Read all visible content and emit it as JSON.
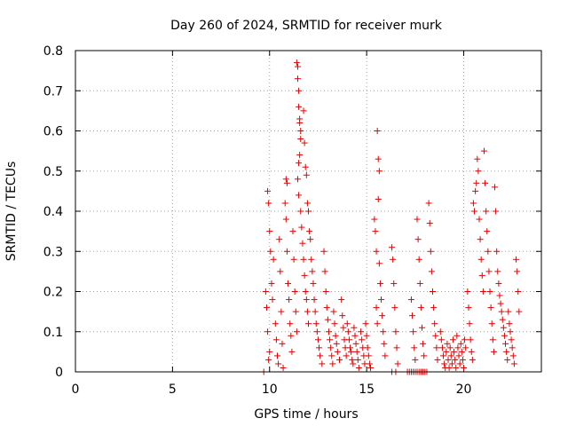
{
  "chart_data": {
    "type": "scatter",
    "title": "Day 260 of 2024, SRMTID for receiver murk",
    "xlabel": "GPS time / hours",
    "ylabel": "SRMTID / TECUs",
    "xlim": [
      0,
      24
    ],
    "ylim": [
      0,
      0.8
    ],
    "xticks": [
      0,
      5,
      10,
      15,
      20
    ],
    "xtick_labels": [
      "0",
      "5",
      "10",
      "15",
      "20"
    ],
    "yticks": [
      0,
      0.1,
      0.2,
      0.3,
      0.4,
      0.5,
      0.6,
      0.7,
      0.8
    ],
    "ytick_labels": [
      "0",
      "0.1",
      "0.2",
      "0.3",
      "0.4",
      "0.5",
      "0.6",
      "0.7",
      "0.8"
    ],
    "grid": true,
    "marker": "+",
    "color": "#e60000",
    "series": [
      {
        "name": "SRMTID",
        "points": [
          [
            9.7,
            0.0
          ],
          [
            9.9,
            0.45
          ],
          [
            9.95,
            0.42
          ],
          [
            10.0,
            0.35
          ],
          [
            10.05,
            0.3
          ],
          [
            10.1,
            0.22
          ],
          [
            10.15,
            0.18
          ],
          [
            9.8,
            0.2
          ],
          [
            9.85,
            0.16
          ],
          [
            9.9,
            0.1
          ],
          [
            10.0,
            0.05
          ],
          [
            9.95,
            0.03
          ],
          [
            10.2,
            0.28
          ],
          [
            10.3,
            0.12
          ],
          [
            10.35,
            0.08
          ],
          [
            10.4,
            0.04
          ],
          [
            10.45,
            0.02
          ],
          [
            10.5,
            0.33
          ],
          [
            10.55,
            0.25
          ],
          [
            10.6,
            0.15
          ],
          [
            10.65,
            0.07
          ],
          [
            10.7,
            0.01
          ],
          [
            10.8,
            0.42
          ],
          [
            10.85,
            0.38
          ],
          [
            10.9,
            0.3
          ],
          [
            10.95,
            0.22
          ],
          [
            11.0,
            0.18
          ],
          [
            11.05,
            0.12
          ],
          [
            11.1,
            0.09
          ],
          [
            11.15,
            0.05
          ],
          [
            10.85,
            0.48
          ],
          [
            10.9,
            0.47
          ],
          [
            11.2,
            0.35
          ],
          [
            11.25,
            0.28
          ],
          [
            11.3,
            0.2
          ],
          [
            11.35,
            0.15
          ],
          [
            11.4,
            0.1
          ],
          [
            11.4,
            0.77
          ],
          [
            11.45,
            0.76
          ],
          [
            11.45,
            0.73
          ],
          [
            11.5,
            0.7
          ],
          [
            11.5,
            0.66
          ],
          [
            11.55,
            0.63
          ],
          [
            11.55,
            0.62
          ],
          [
            11.6,
            0.6
          ],
          [
            11.6,
            0.58
          ],
          [
            11.55,
            0.54
          ],
          [
            11.5,
            0.52
          ],
          [
            11.45,
            0.48
          ],
          [
            11.5,
            0.44
          ],
          [
            11.6,
            0.4
          ],
          [
            11.65,
            0.36
          ],
          [
            11.7,
            0.32
          ],
          [
            11.75,
            0.28
          ],
          [
            11.8,
            0.24
          ],
          [
            11.85,
            0.2
          ],
          [
            11.9,
            0.18
          ],
          [
            11.95,
            0.15
          ],
          [
            12.0,
            0.12
          ],
          [
            11.75,
            0.65
          ],
          [
            11.8,
            0.57
          ],
          [
            11.85,
            0.51
          ],
          [
            11.9,
            0.49
          ],
          [
            11.95,
            0.42
          ],
          [
            12.0,
            0.4
          ],
          [
            12.05,
            0.35
          ],
          [
            12.1,
            0.33
          ],
          [
            12.15,
            0.28
          ],
          [
            12.2,
            0.25
          ],
          [
            12.25,
            0.22
          ],
          [
            12.3,
            0.18
          ],
          [
            12.35,
            0.15
          ],
          [
            12.4,
            0.12
          ],
          [
            12.45,
            0.1
          ],
          [
            12.5,
            0.08
          ],
          [
            12.55,
            0.06
          ],
          [
            12.6,
            0.04
          ],
          [
            12.7,
            0.02
          ],
          [
            12.8,
            0.3
          ],
          [
            12.85,
            0.25
          ],
          [
            12.9,
            0.2
          ],
          [
            12.95,
            0.16
          ],
          [
            13.0,
            0.13
          ],
          [
            13.05,
            0.1
          ],
          [
            13.1,
            0.08
          ],
          [
            13.15,
            0.06
          ],
          [
            13.2,
            0.04
          ],
          [
            13.25,
            0.02
          ],
          [
            13.3,
            0.15
          ],
          [
            13.35,
            0.12
          ],
          [
            13.4,
            0.09
          ],
          [
            13.45,
            0.07
          ],
          [
            13.5,
            0.05
          ],
          [
            13.6,
            0.03
          ],
          [
            13.7,
            0.18
          ],
          [
            13.75,
            0.14
          ],
          [
            13.8,
            0.11
          ],
          [
            13.85,
            0.08
          ],
          [
            13.9,
            0.06
          ],
          [
            13.95,
            0.04
          ],
          [
            14.0,
            0.12
          ],
          [
            14.05,
            0.1
          ],
          [
            14.1,
            0.08
          ],
          [
            14.15,
            0.06
          ],
          [
            14.2,
            0.05
          ],
          [
            14.25,
            0.03
          ],
          [
            14.3,
            0.02
          ],
          [
            14.35,
            0.11
          ],
          [
            14.4,
            0.09
          ],
          [
            14.45,
            0.07
          ],
          [
            14.5,
            0.05
          ],
          [
            14.55,
            0.03
          ],
          [
            14.6,
            0.01
          ],
          [
            14.7,
            0.1
          ],
          [
            14.75,
            0.08
          ],
          [
            14.8,
            0.06
          ],
          [
            14.85,
            0.04
          ],
          [
            14.9,
            0.02
          ],
          [
            14.95,
            0.12
          ],
          [
            15.0,
            0.09
          ],
          [
            15.05,
            0.06
          ],
          [
            15.1,
            0.04
          ],
          [
            15.15,
            0.02
          ],
          [
            15.2,
            0.01
          ],
          [
            15.4,
            0.38
          ],
          [
            15.45,
            0.35
          ],
          [
            15.5,
            0.3
          ],
          [
            15.55,
            0.6
          ],
          [
            15.6,
            0.53
          ],
          [
            15.65,
            0.5
          ],
          [
            15.6,
            0.43
          ],
          [
            15.65,
            0.27
          ],
          [
            15.7,
            0.22
          ],
          [
            15.75,
            0.18
          ],
          [
            15.8,
            0.14
          ],
          [
            15.85,
            0.1
          ],
          [
            15.9,
            0.07
          ],
          [
            15.95,
            0.04
          ],
          [
            15.5,
            0.16
          ],
          [
            15.55,
            0.12
          ],
          [
            16.3,
            0.31
          ],
          [
            16.35,
            0.28
          ],
          [
            16.4,
            0.22
          ],
          [
            16.45,
            0.16
          ],
          [
            16.5,
            0.1
          ],
          [
            16.55,
            0.06
          ],
          [
            16.6,
            0.02
          ],
          [
            16.3,
            0.0
          ],
          [
            16.5,
            0.0
          ],
          [
            17.1,
            0.0
          ],
          [
            17.2,
            0.0
          ],
          [
            17.3,
            0.0
          ],
          [
            17.4,
            0.0
          ],
          [
            17.5,
            0.0
          ],
          [
            17.6,
            0.0
          ],
          [
            17.7,
            0.0
          ],
          [
            17.8,
            0.0
          ],
          [
            17.9,
            0.0
          ],
          [
            18.0,
            0.0
          ],
          [
            18.1,
            0.0
          ],
          [
            17.3,
            0.18
          ],
          [
            17.35,
            0.14
          ],
          [
            17.4,
            0.1
          ],
          [
            17.45,
            0.06
          ],
          [
            17.5,
            0.03
          ],
          [
            17.6,
            0.38
          ],
          [
            17.65,
            0.33
          ],
          [
            17.7,
            0.28
          ],
          [
            17.75,
            0.22
          ],
          [
            17.8,
            0.16
          ],
          [
            17.85,
            0.11
          ],
          [
            17.9,
            0.07
          ],
          [
            17.95,
            0.04
          ],
          [
            18.2,
            0.42
          ],
          [
            18.25,
            0.37
          ],
          [
            18.3,
            0.3
          ],
          [
            18.35,
            0.25
          ],
          [
            18.4,
            0.2
          ],
          [
            18.45,
            0.16
          ],
          [
            18.5,
            0.12
          ],
          [
            18.55,
            0.09
          ],
          [
            18.6,
            0.06
          ],
          [
            18.65,
            0.03
          ],
          [
            18.8,
            0.1
          ],
          [
            18.85,
            0.08
          ],
          [
            18.9,
            0.06
          ],
          [
            18.95,
            0.04
          ],
          [
            19.0,
            0.02
          ],
          [
            19.05,
            0.01
          ],
          [
            19.1,
            0.05
          ],
          [
            19.15,
            0.07
          ],
          [
            19.2,
            0.03
          ],
          [
            19.25,
            0.01
          ],
          [
            19.3,
            0.06
          ],
          [
            19.35,
            0.04
          ],
          [
            19.4,
            0.02
          ],
          [
            19.45,
            0.08
          ],
          [
            19.5,
            0.05
          ],
          [
            19.55,
            0.03
          ],
          [
            19.6,
            0.01
          ],
          [
            19.65,
            0.09
          ],
          [
            19.7,
            0.06
          ],
          [
            19.75,
            0.04
          ],
          [
            19.8,
            0.02
          ],
          [
            19.85,
            0.07
          ],
          [
            19.9,
            0.05
          ],
          [
            19.95,
            0.03
          ],
          [
            20.0,
            0.01
          ],
          [
            20.05,
            0.08
          ],
          [
            20.1,
            0.06
          ],
          [
            20.2,
            0.2
          ],
          [
            20.25,
            0.16
          ],
          [
            20.3,
            0.12
          ],
          [
            20.35,
            0.08
          ],
          [
            20.4,
            0.05
          ],
          [
            20.45,
            0.03
          ],
          [
            20.5,
            0.42
          ],
          [
            20.55,
            0.4
          ],
          [
            20.6,
            0.45
          ],
          [
            20.65,
            0.47
          ],
          [
            20.7,
            0.53
          ],
          [
            20.75,
            0.5
          ],
          [
            20.8,
            0.38
          ],
          [
            20.85,
            0.33
          ],
          [
            20.9,
            0.28
          ],
          [
            20.95,
            0.24
          ],
          [
            21.0,
            0.2
          ],
          [
            21.05,
            0.55
          ],
          [
            21.1,
            0.47
          ],
          [
            21.15,
            0.4
          ],
          [
            21.2,
            0.35
          ],
          [
            21.25,
            0.3
          ],
          [
            21.3,
            0.25
          ],
          [
            21.35,
            0.2
          ],
          [
            21.4,
            0.16
          ],
          [
            21.45,
            0.12
          ],
          [
            21.5,
            0.08
          ],
          [
            21.55,
            0.05
          ],
          [
            21.6,
            0.46
          ],
          [
            21.65,
            0.4
          ],
          [
            21.7,
            0.3
          ],
          [
            21.75,
            0.25
          ],
          [
            21.8,
            0.22
          ],
          [
            21.85,
            0.19
          ],
          [
            21.9,
            0.17
          ],
          [
            21.95,
            0.15
          ],
          [
            22.0,
            0.13
          ],
          [
            22.05,
            0.11
          ],
          [
            22.1,
            0.09
          ],
          [
            22.15,
            0.07
          ],
          [
            22.2,
            0.05
          ],
          [
            22.25,
            0.03
          ],
          [
            22.3,
            0.15
          ],
          [
            22.35,
            0.12
          ],
          [
            22.4,
            0.1
          ],
          [
            22.45,
            0.08
          ],
          [
            22.5,
            0.06
          ],
          [
            22.55,
            0.04
          ],
          [
            22.6,
            0.02
          ],
          [
            22.7,
            0.28
          ],
          [
            22.75,
            0.25
          ],
          [
            22.8,
            0.2
          ],
          [
            22.85,
            0.15
          ]
        ]
      }
    ]
  }
}
